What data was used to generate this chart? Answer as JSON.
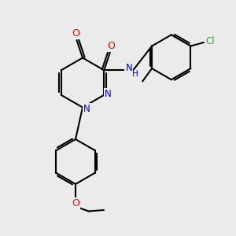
{
  "background_color": "#ebebeb",
  "bond_color": "#000000",
  "N_color": "#0000cc",
  "O_color": "#ff0000",
  "Cl_color": "#33aa33",
  "line_width": 1.5,
  "figsize": [
    3.0,
    3.0
  ],
  "dpi": 100,
  "xlim": [
    0,
    10
  ],
  "ylim": [
    0,
    10
  ]
}
